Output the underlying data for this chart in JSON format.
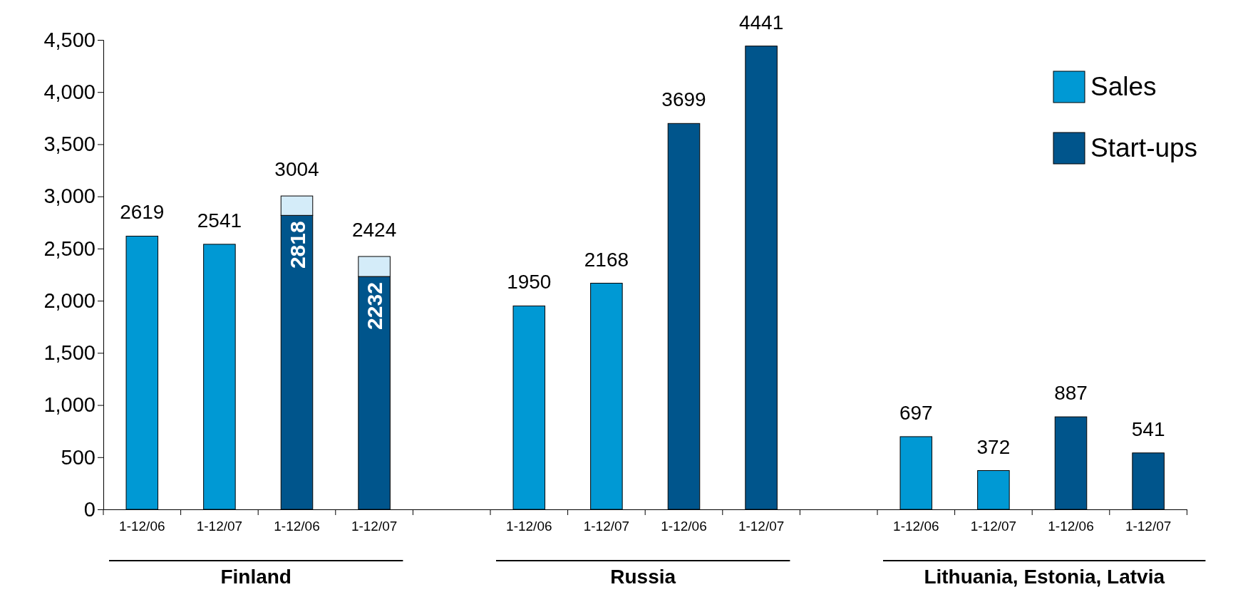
{
  "chart_data": {
    "type": "bar",
    "stacked": true,
    "categories": [
      "1-12/06",
      "1-12/07",
      "1-12/06",
      "1-12/07",
      null,
      "1-12/06",
      "1-12/07",
      "1-12/06",
      "1-12/07",
      null,
      "1-12/06",
      "1-12/07",
      "1-12/06",
      "1-12/07"
    ],
    "series": [
      {
        "name": "Sales",
        "color": "#0099d4",
        "values": [
          2619,
          2541,
          null,
          null,
          null,
          1950,
          2168,
          null,
          null,
          null,
          697,
          372,
          null,
          null
        ],
        "value_labels": [
          "2619",
          "2541",
          null,
          null,
          null,
          "1950",
          "2168",
          null,
          null,
          null,
          "697",
          "372",
          null,
          null
        ]
      },
      {
        "name": "Start-ups",
        "color": "#00558c",
        "values": [
          null,
          null,
          2818,
          2232,
          null,
          null,
          null,
          3699,
          4441,
          null,
          null,
          null,
          887,
          541
        ],
        "value_labels": [
          null,
          null,
          "2818",
          "2232",
          null,
          null,
          null,
          "3699",
          "4441",
          null,
          null,
          null,
          "887",
          "541"
        ]
      },
      {
        "color": "#d4ecf9",
        "values": [
          null,
          null,
          186,
          192,
          null,
          null,
          null,
          null,
          null,
          null,
          null,
          null,
          null,
          null
        ]
      }
    ],
    "totals": [
      null,
      null,
      "3004",
      "2424",
      null,
      null,
      null,
      null,
      null,
      null,
      null,
      null,
      null,
      null
    ],
    "ylim": [
      0,
      4500
    ],
    "yticks": [
      0,
      500,
      {
        "value": 1000,
        "label": "1,000"
      },
      {
        "value": 1500,
        "label": "1,500"
      },
      {
        "value": 2000,
        "label": "2,000"
      },
      {
        "value": 2500,
        "label": "2,500"
      },
      {
        "value": 3000,
        "label": "3,000"
      },
      {
        "value": 3500,
        "label": "3,500"
      },
      {
        "value": 4000,
        "label": "4,000"
      },
      {
        "value": 4500,
        "label": "4,500"
      }
    ],
    "legend": "top right",
    "annotations": [
      "Finland",
      "Russia",
      "Lithuania, Estonia, Latvia"
    ]
  }
}
